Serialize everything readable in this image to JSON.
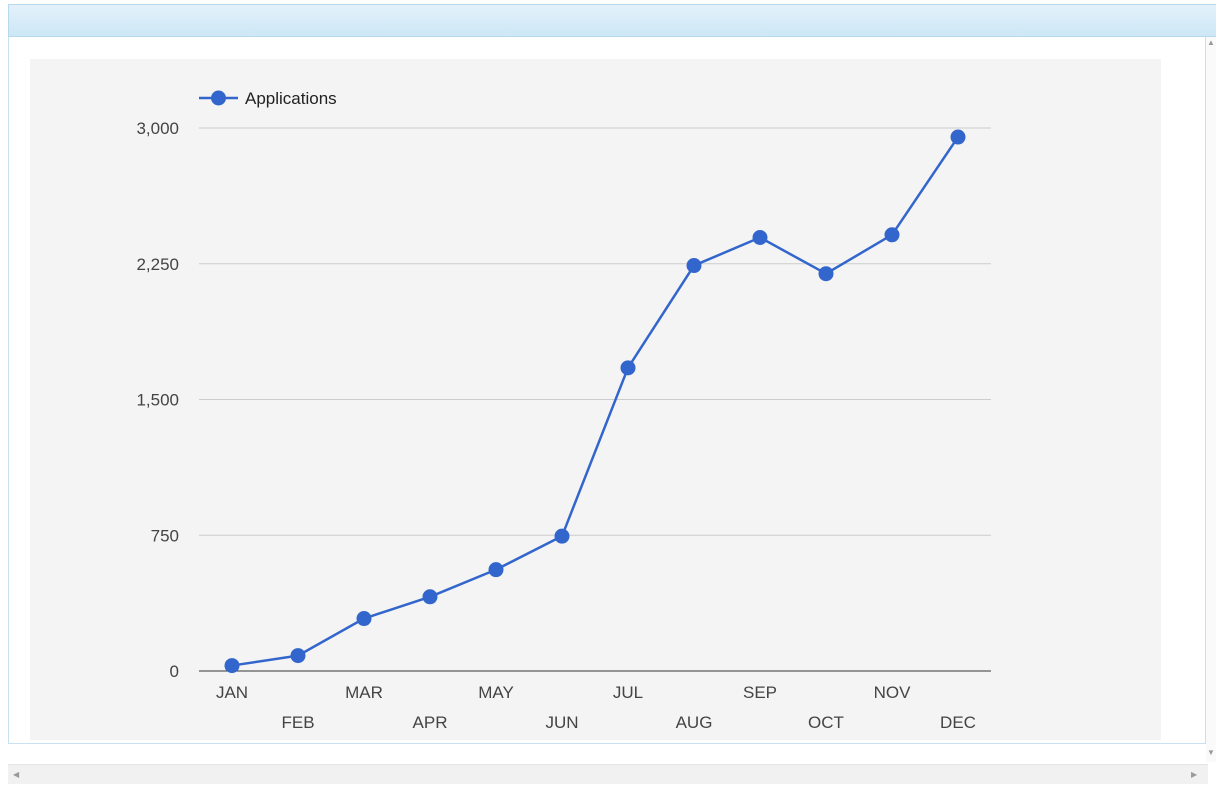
{
  "chart_data": {
    "type": "line",
    "categories": [
      "JAN",
      "FEB",
      "MAR",
      "APR",
      "MAY",
      "JUN",
      "JUL",
      "AUG",
      "SEP",
      "OCT",
      "NOV",
      "DEC"
    ],
    "series": [
      {
        "name": "Applications",
        "values": [
          30,
          85,
          290,
          410,
          560,
          745,
          1675,
          2240,
          2395,
          2195,
          2410,
          2950
        ]
      }
    ],
    "ylim": [
      0,
      3000
    ],
    "yticks": [
      0,
      750,
      1500,
      2250,
      3000
    ],
    "ytick_labels": [
      "0",
      "750",
      "1,500",
      "2,250",
      "3,000"
    ],
    "grid": true,
    "legend": "top-left",
    "colors": {
      "series": "#3366cc",
      "background": "#f4f4f4",
      "grid": "#cccccc"
    }
  },
  "scrollbars": {
    "left_arrow": "◀",
    "right_arrow": "▶",
    "up_arrow": "▲",
    "down_arrow": "▼"
  }
}
